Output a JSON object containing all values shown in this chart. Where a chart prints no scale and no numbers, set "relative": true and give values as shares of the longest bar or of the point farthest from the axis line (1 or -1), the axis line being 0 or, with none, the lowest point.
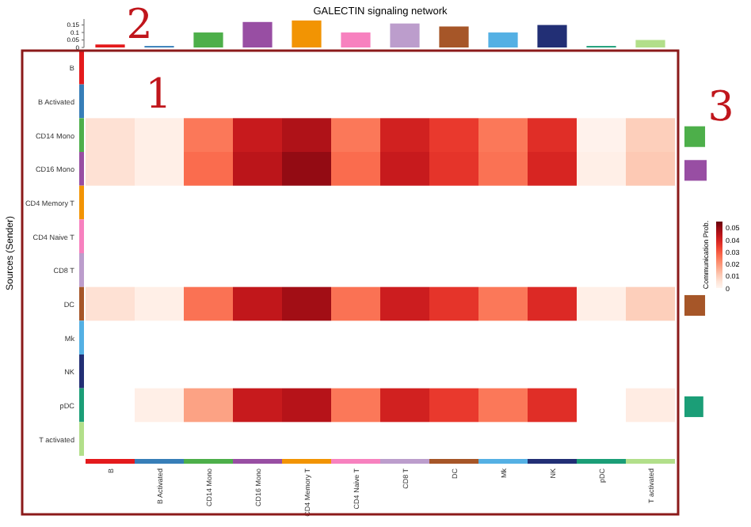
{
  "chart_data": [
    {
      "type": "heatmap",
      "ylabel": "Sources (Sender)",
      "clabel": "Communication Prob.",
      "categories": [
        "B",
        "B Activated",
        "CD14 Mono",
        "CD16 Mono",
        "CD4 Memory T",
        "CD4 Naive T",
        "CD8 T",
        "DC",
        "Mk",
        "NK",
        "pDC",
        "T activated"
      ],
      "y_categories": [
        "B",
        "B Activated",
        "CD14 Mono",
        "CD16 Mono",
        "CD4 Memory T",
        "CD4 Naive T",
        "CD8 T",
        "DC",
        "Mk",
        "NK",
        "pDC",
        "T activated"
      ],
      "colors": [
        "#e41a1c",
        "#377eb8",
        "#4daf4a",
        "#984ea3",
        "#f29403",
        "#f781bf",
        "#bc9dcc",
        "#a65628",
        "#54b0e4",
        "#222f75",
        "#1b9e77",
        "#b2df8a"
      ],
      "cells": [
        [
          null,
          null,
          null,
          null,
          null,
          null,
          null,
          null,
          null,
          null,
          null,
          null
        ],
        [
          null,
          null,
          null,
          null,
          null,
          null,
          null,
          null,
          null,
          null,
          null,
          null
        ],
        [
          0.006,
          0.002,
          0.025,
          0.042,
          0.046,
          0.025,
          0.04,
          0.035,
          0.025,
          0.037,
          0.001,
          0.01
        ],
        [
          0.006,
          0.002,
          0.027,
          0.044,
          0.05,
          0.027,
          0.042,
          0.036,
          0.026,
          0.039,
          0.002,
          0.011
        ],
        [
          null,
          null,
          null,
          null,
          null,
          null,
          null,
          null,
          null,
          null,
          null,
          null
        ],
        [
          null,
          null,
          null,
          null,
          null,
          null,
          null,
          null,
          null,
          null,
          null,
          null
        ],
        [
          null,
          null,
          null,
          null,
          null,
          null,
          null,
          null,
          null,
          null,
          null,
          null
        ],
        [
          0.006,
          0.002,
          0.026,
          0.043,
          0.048,
          0.026,
          0.041,
          0.036,
          0.025,
          0.038,
          0.002,
          0.01
        ],
        [
          null,
          null,
          null,
          null,
          null,
          null,
          null,
          null,
          null,
          null,
          null,
          null
        ],
        [
          null,
          null,
          null,
          null,
          null,
          null,
          null,
          null,
          null,
          null,
          null,
          null
        ],
        [
          null,
          0.002,
          0.018,
          0.042,
          0.045,
          0.025,
          0.04,
          0.035,
          0.025,
          0.037,
          null,
          0.003
        ],
        [
          null,
          null,
          null,
          null,
          null,
          null,
          null,
          null,
          null,
          null,
          null,
          null
        ]
      ],
      "clim": [
        0,
        0.055
      ],
      "cticks": [
        0,
        0.01,
        0.02,
        0.03,
        0.04,
        0.05
      ],
      "annotations": [
        "1",
        "2",
        "3"
      ]
    },
    {
      "type": "bar",
      "title": "GALECTIN signaling network",
      "categories": [
        null,
        null,
        null,
        null,
        null,
        null,
        null,
        null,
        null,
        null,
        null,
        null
      ],
      "values": [
        0.02,
        0.01,
        0.1,
        0.17,
        0.18,
        0.1,
        0.16,
        0.14,
        0.1,
        0.15,
        0.01,
        0.05
      ],
      "colors": [
        "#e41a1c",
        "#377eb8",
        "#4daf4a",
        "#984ea3",
        "#f29403",
        "#f781bf",
        "#bc9dcc",
        "#a65628",
        "#54b0e4",
        "#222f75",
        "#1b9e77",
        "#b2df8a"
      ],
      "ylim": [
        0,
        0.19
      ],
      "yticks": [
        0,
        0.05,
        0.1,
        0.15
      ],
      "tick_labels": "y"
    },
    {
      "type": "bar",
      "orientation": "horizontal",
      "relative": true,
      "tick_labels": false,
      "categories": [
        null,
        null,
        null,
        null,
        null,
        null,
        null,
        null,
        null,
        null,
        null,
        null
      ],
      "values": [
        0,
        0,
        0.93,
        1,
        0,
        0,
        0,
        0.93,
        0,
        0,
        0.85,
        0
      ],
      "colors": [
        "#e41a1c",
        "#377eb8",
        "#4daf4a",
        "#984ea3",
        "#f29403",
        "#f781bf",
        "#bc9dcc",
        "#a65628",
        "#54b0e4",
        "#222f75",
        "#1b9e77",
        "#b2df8a"
      ]
    }
  ]
}
